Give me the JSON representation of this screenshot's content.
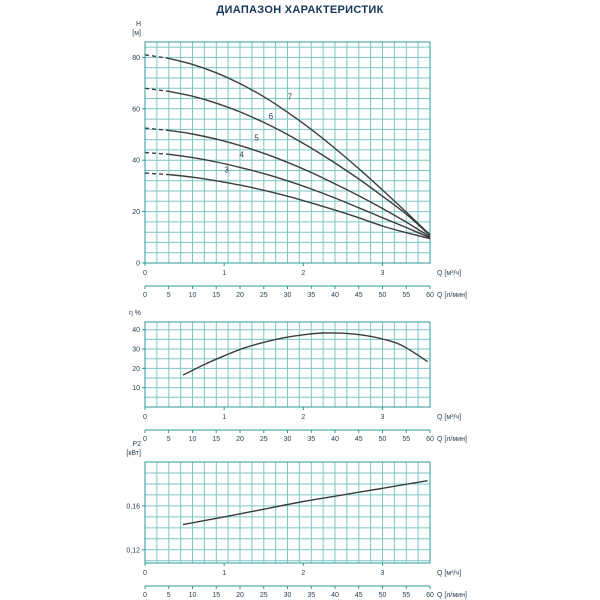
{
  "title": "ДИАПАЗОН ХАРАКТЕРИСТИК",
  "colors": {
    "grid": "#7ec6c6",
    "axis": "#2d9898",
    "curve": "#3d3d3d",
    "text": "#2b3e50",
    "title": "#15365a"
  },
  "chart_data": [
    {
      "type": "line",
      "name": "head-flow",
      "ylabel_lines": [
        "H",
        "[м]"
      ],
      "xlabel_primary": "Q [м³/ч]",
      "xlabel_secondary": "Q [л/мин]",
      "xlim": [
        0,
        3.6
      ],
      "ylim": [
        0,
        86
      ],
      "x_minor_step": 0.15,
      "y_minor_step": 4,
      "dashed_until": 0.33,
      "y_ticks": [
        [
          0,
          "0"
        ],
        [
          20,
          "20"
        ],
        [
          40,
          "40"
        ],
        [
          60,
          "60"
        ],
        [
          80,
          "80"
        ]
      ],
      "x_ticks_primary": [
        [
          0,
          "0"
        ],
        [
          1,
          "1"
        ],
        [
          2,
          "2"
        ],
        [
          3,
          "3"
        ]
      ],
      "x_ticks_secondary": [
        [
          0,
          "0"
        ],
        [
          5,
          "5"
        ],
        [
          10,
          "10"
        ],
        [
          15,
          "15"
        ],
        [
          20,
          "20"
        ],
        [
          25,
          "25"
        ],
        [
          30,
          "30"
        ],
        [
          35,
          "35"
        ],
        [
          40,
          "40"
        ],
        [
          45,
          "45"
        ],
        [
          50,
          "50"
        ],
        [
          55,
          "55"
        ],
        [
          60,
          "60"
        ]
      ],
      "series": [
        {
          "label": "3",
          "label_pos": [
            1.03,
            35.2
          ],
          "x": [
            0,
            0.3,
            0.6,
            0.9,
            1.2,
            1.5,
            1.8,
            2.1,
            2.4,
            2.7,
            3,
            3.3,
            3.6
          ],
          "y": [
            35,
            34.4,
            33.4,
            32,
            30.3,
            28.3,
            26,
            23.4,
            20.6,
            17.6,
            14.4,
            11.8,
            9.5
          ]
        },
        {
          "label": "4",
          "label_pos": [
            1.22,
            41
          ],
          "x": [
            0,
            0.3,
            0.6,
            0.9,
            1.2,
            1.5,
            1.8,
            2.1,
            2.4,
            2.7,
            3,
            3.3,
            3.6
          ],
          "y": [
            43,
            42.3,
            41,
            39.3,
            37.2,
            34.8,
            32,
            28.8,
            25.3,
            21.5,
            17.6,
            13.8,
            9.8
          ]
        },
        {
          "label": "5",
          "label_pos": [
            1.41,
            47.6
          ],
          "x": [
            0,
            0.3,
            0.6,
            0.9,
            1.2,
            1.5,
            1.8,
            2.1,
            2.4,
            2.7,
            3,
            3.3,
            3.6
          ],
          "y": [
            52.5,
            51.6,
            50.2,
            48.2,
            45.7,
            42.7,
            39.2,
            35.2,
            30.8,
            26.2,
            21.2,
            15.9,
            10.2
          ]
        },
        {
          "label": "6",
          "label_pos": [
            1.59,
            56
          ],
          "x": [
            0,
            0.3,
            0.6,
            0.9,
            1.2,
            1.5,
            1.8,
            2.1,
            2.4,
            2.7,
            3,
            3.3,
            3.6
          ],
          "y": [
            68,
            66.8,
            64.9,
            62.2,
            58.8,
            54.7,
            50,
            44.7,
            38.9,
            32.7,
            26,
            19,
            10.7
          ]
        },
        {
          "label": "7",
          "label_pos": [
            1.83,
            63.7
          ],
          "x": [
            0,
            0.3,
            0.6,
            0.9,
            1.2,
            1.5,
            1.8,
            2.1,
            2.4,
            2.7,
            3,
            3.3,
            3.6
          ],
          "y": [
            81,
            79.6,
            77.3,
            74,
            69.8,
            64.7,
            58.7,
            52,
            44.6,
            36.7,
            28.4,
            19.8,
            11
          ]
        }
      ]
    },
    {
      "type": "line",
      "name": "efficiency-flow",
      "ylabel_lines": [
        "η %"
      ],
      "xlabel_primary": "Q [м³/ч]",
      "xlabel_secondary": "Q [л/мин]",
      "xlim": [
        0,
        3.6
      ],
      "ylim": [
        0,
        44
      ],
      "x_minor_step": 0.15,
      "y_minor_step": 5,
      "dashed_until": 0,
      "y_ticks": [
        [
          10,
          "10"
        ],
        [
          20,
          "20"
        ],
        [
          30,
          "30"
        ],
        [
          40,
          "40"
        ]
      ],
      "x_ticks_primary": [
        [
          0,
          "0"
        ],
        [
          1,
          "1"
        ],
        [
          2,
          "2"
        ],
        [
          3,
          "3"
        ]
      ],
      "x_ticks_secondary": [
        [
          0,
          "0"
        ],
        [
          5,
          "5"
        ],
        [
          10,
          "10"
        ],
        [
          15,
          "15"
        ],
        [
          20,
          "20"
        ],
        [
          25,
          "25"
        ],
        [
          30,
          "30"
        ],
        [
          35,
          "35"
        ],
        [
          40,
          "40"
        ],
        [
          45,
          "45"
        ],
        [
          50,
          "50"
        ],
        [
          55,
          "55"
        ],
        [
          60,
          "60"
        ]
      ],
      "series": [
        {
          "x": [
            0.48,
            0.75,
            1,
            1.25,
            1.5,
            1.75,
            2,
            2.25,
            2.5,
            2.75,
            3,
            3.25,
            3.57
          ],
          "y": [
            16.5,
            22,
            26.5,
            30.5,
            33.5,
            35.8,
            37.4,
            38.3,
            38.2,
            37.2,
            35.2,
            31.8,
            23.5
          ]
        }
      ]
    },
    {
      "type": "line",
      "name": "power-flow",
      "ylabel_lines": [
        "P2",
        "[кВт]"
      ],
      "xlabel_primary": "Q [м³/ч]",
      "xlabel_secondary": "Q [л/мин]",
      "xlim": [
        0,
        3.6
      ],
      "ylim": [
        0.108,
        0.2
      ],
      "x_minor_step": 0.15,
      "y_minor_step": 0.01,
      "dashed_until": 0,
      "y_ticks": [
        [
          0.12,
          "0,12"
        ],
        [
          0.16,
          "0,16"
        ]
      ],
      "x_ticks_primary": [
        [
          0,
          "0"
        ],
        [
          1,
          "1"
        ],
        [
          2,
          "2"
        ],
        [
          3,
          "3"
        ]
      ],
      "x_ticks_secondary": [
        [
          0,
          "0"
        ],
        [
          5,
          "5"
        ],
        [
          10,
          "10"
        ],
        [
          15,
          "15"
        ],
        [
          20,
          "20"
        ],
        [
          25,
          "25"
        ],
        [
          30,
          "30"
        ],
        [
          35,
          "35"
        ],
        [
          40,
          "40"
        ],
        [
          45,
          "45"
        ],
        [
          50,
          "50"
        ],
        [
          55,
          "55"
        ],
        [
          60,
          "60"
        ]
      ],
      "series": [
        {
          "x": [
            0.48,
            1,
            1.5,
            2,
            2.5,
            3,
            3.57
          ],
          "y": [
            0.143,
            0.15,
            0.157,
            0.164,
            0.17,
            0.176,
            0.183
          ]
        }
      ]
    }
  ]
}
